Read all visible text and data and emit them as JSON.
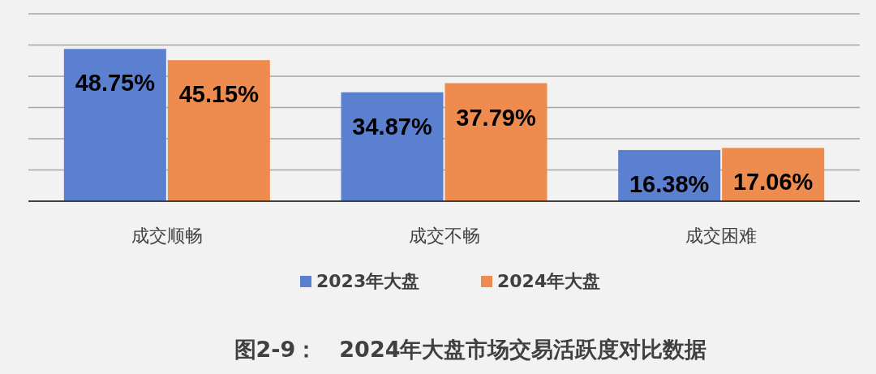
{
  "chart_data": {
    "type": "bar",
    "title": "图2-9：　2024年大盘市场交易活跃度对比数据",
    "categories": [
      "成交顺畅",
      "成交不畅",
      "成交困难"
    ],
    "series": [
      {
        "name": "2023年大盘",
        "color": "#5b80d0",
        "values": [
          48.75,
          34.87,
          16.38
        ],
        "value_labels": [
          "48.75%",
          "34.87%",
          "16.38%"
        ]
      },
      {
        "name": "2024年大盘",
        "color": "#ee8b4f",
        "values": [
          45.15,
          37.79,
          17.06
        ],
        "value_labels": [
          "45.15%",
          "37.79%",
          "17.06%"
        ]
      }
    ],
    "ylim": [
      0,
      60
    ],
    "yticks": [
      {
        "value": 0,
        "label": null
      },
      {
        "value": 10,
        "label": null
      },
      {
        "value": 20,
        "label": null
      },
      {
        "value": 30,
        "label": null
      },
      {
        "value": 40,
        "label": null
      },
      {
        "value": 50,
        "label": null
      },
      {
        "value": 60,
        "label": null
      }
    ],
    "grid": "y",
    "legend": "bottom",
    "tick_labels": "x"
  }
}
